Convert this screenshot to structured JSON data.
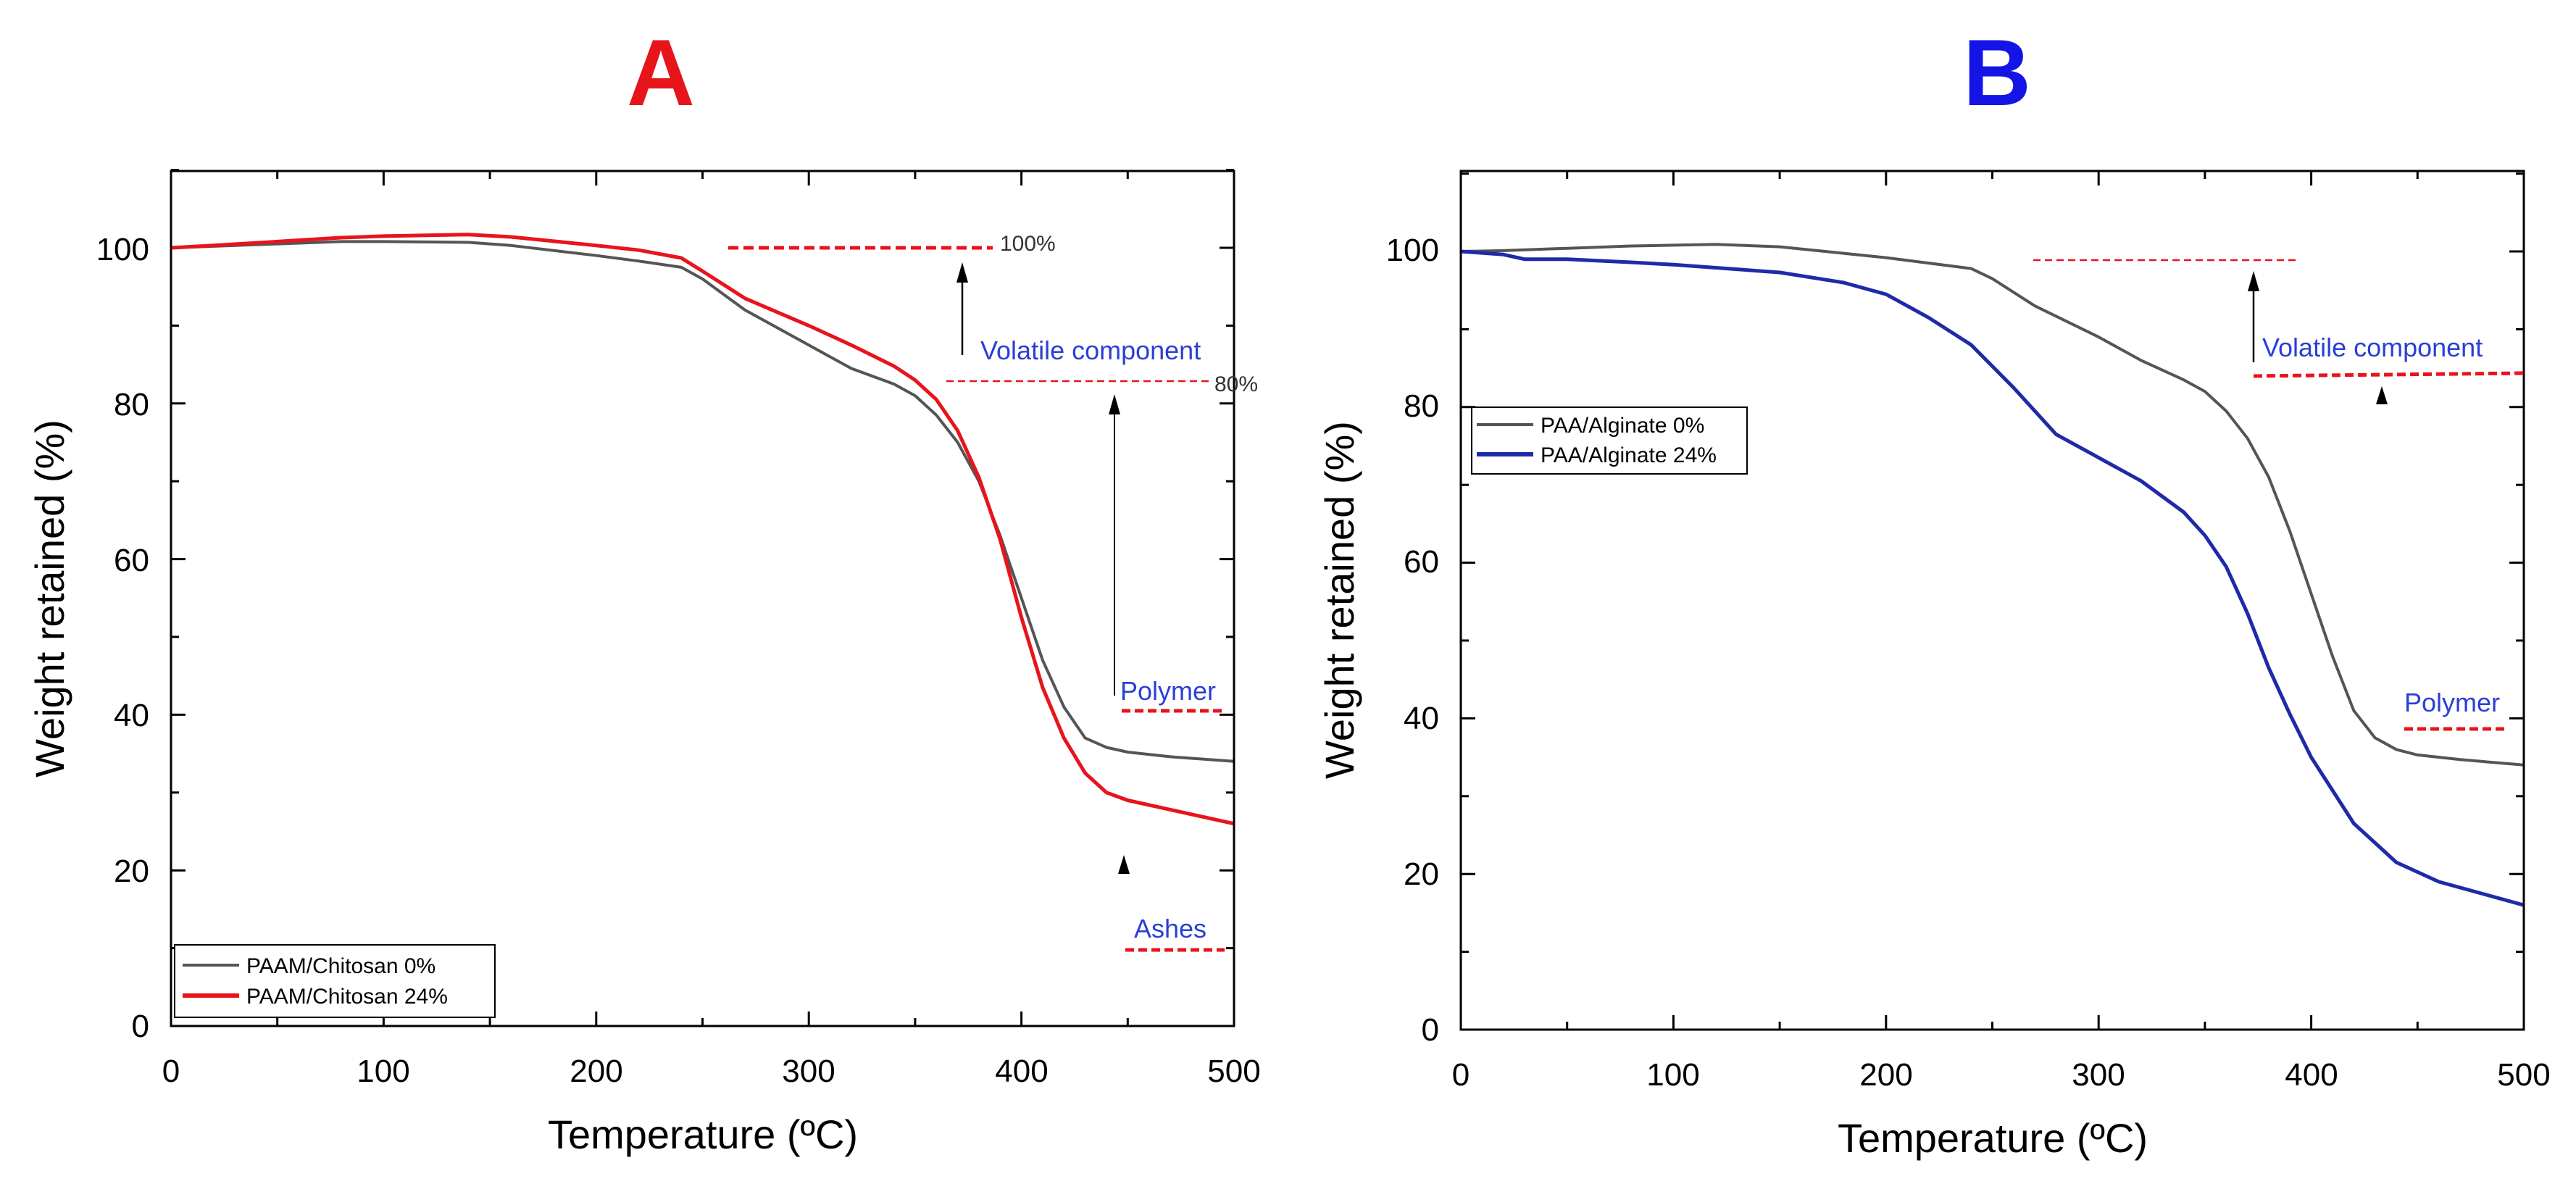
{
  "chart_data": [
    {
      "panel": "A",
      "panel_color": "#e8141c",
      "type": "line",
      "xlabel": "Temperature (ºC)",
      "ylabel": "Weight retained (%)",
      "xlim": [
        0,
        500
      ],
      "ylim": [
        0,
        110
      ],
      "xticks": [
        "0",
        "100",
        "200",
        "300",
        "400",
        "500"
      ],
      "yticks": [
        "0",
        "20",
        "40",
        "60",
        "80",
        "100"
      ],
      "legend_position": "bottom-left",
      "series": [
        {
          "name": "PAAM/Chitosan 0%",
          "color": "#555555",
          "x": [
            0,
            20,
            50,
            80,
            100,
            140,
            160,
            200,
            220,
            240,
            250,
            270,
            300,
            320,
            340,
            350,
            360,
            370,
            380,
            390,
            400,
            410,
            420,
            430,
            440,
            450,
            470,
            500
          ],
          "y": [
            100,
            100.2,
            100.5,
            100.8,
            100.8,
            100.7,
            100.3,
            99,
            98.3,
            97.5,
            96,
            92,
            87.5,
            84.5,
            82.5,
            81,
            78.5,
            75,
            70,
            63,
            55,
            47,
            41,
            37,
            35.8,
            35.2,
            34.6,
            34
          ]
        },
        {
          "name": "PAAM/Chitosan 24%",
          "color": "#e8141c",
          "x": [
            0,
            20,
            50,
            80,
            100,
            140,
            160,
            200,
            220,
            240,
            250,
            270,
            300,
            320,
            340,
            350,
            360,
            370,
            380,
            390,
            400,
            410,
            420,
            430,
            440,
            450,
            470,
            500
          ],
          "y": [
            100,
            100.3,
            100.8,
            101.3,
            101.5,
            101.7,
            101.4,
            100.3,
            99.7,
            98.7,
            97,
            93.5,
            90,
            87.5,
            84.8,
            83,
            80.5,
            76.5,
            70.5,
            62.5,
            52.5,
            43.5,
            37,
            32.5,
            30,
            29,
            27.8,
            26
          ]
        }
      ],
      "annotations": {
        "level_100": "100%",
        "level_80": "80%",
        "volatile": "Volatile component",
        "polymer": "Polymer",
        "ashes": "Ashes"
      }
    },
    {
      "panel": "B",
      "panel_color": "#1414e6",
      "type": "line",
      "xlabel": "Temperature (ºC)",
      "ylabel": "Weight retained (%)",
      "xlim": [
        0,
        500
      ],
      "ylim": [
        0,
        110
      ],
      "xticks": [
        "0",
        "100",
        "200",
        "300",
        "400",
        "500"
      ],
      "yticks": [
        "0",
        "20",
        "40",
        "60",
        "80",
        "100"
      ],
      "legend_position": "top-left",
      "series": [
        {
          "name": "PAA/Alginate 0%",
          "color": "#555555",
          "x": [
            0,
            20,
            50,
            80,
            100,
            120,
            150,
            200,
            220,
            240,
            250,
            270,
            300,
            320,
            340,
            350,
            360,
            370,
            380,
            390,
            400,
            410,
            420,
            430,
            440,
            450,
            470,
            500
          ],
          "y": [
            100,
            100.1,
            100.4,
            100.7,
            100.8,
            100.9,
            100.6,
            99.2,
            98.5,
            97.8,
            96.5,
            93,
            89,
            86,
            83.5,
            82,
            79.5,
            76,
            71,
            64,
            56,
            48,
            41,
            37.5,
            36,
            35.3,
            34.7,
            34
          ]
        },
        {
          "name": "PAA/Alginate 24%",
          "color": "#1f2aa8",
          "x": [
            0,
            20,
            30,
            50,
            80,
            100,
            150,
            180,
            200,
            220,
            240,
            260,
            280,
            300,
            320,
            340,
            350,
            360,
            370,
            380,
            390,
            400,
            420,
            440,
            460,
            480,
            500
          ],
          "y": [
            100,
            99.6,
            99,
            99,
            98.6,
            98.3,
            97.3,
            96,
            94.5,
            91.5,
            88,
            82.5,
            76.5,
            73.5,
            70.5,
            66.5,
            63.5,
            59.5,
            53.5,
            46.5,
            40.5,
            35,
            26.5,
            21.5,
            19,
            17.5,
            16
          ]
        }
      ],
      "annotations": {
        "volatile": "Volatile component",
        "polymer": "Polymer"
      }
    }
  ]
}
